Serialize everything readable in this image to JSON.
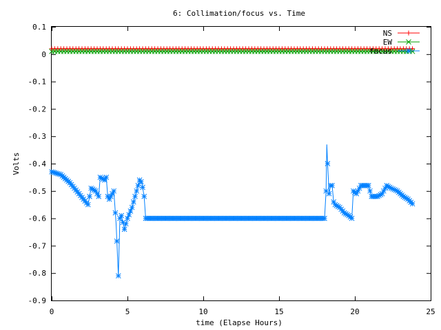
{
  "chart_data": {
    "type": "line",
    "title": "6: Collimation/focus vs. Time",
    "xlabel": "time (Elapse Hours)",
    "ylabel": "Volts",
    "xlim": [
      0,
      25
    ],
    "ylim": [
      -0.9,
      0.1
    ],
    "x_ticks": [
      0,
      5,
      10,
      15,
      20,
      25
    ],
    "x_tick_labels": [
      "0",
      "5",
      "10",
      "15",
      "20",
      "25"
    ],
    "y_ticks": [
      0.1,
      0,
      -0.1,
      -0.2,
      -0.3,
      -0.4,
      -0.5,
      -0.6,
      -0.7,
      -0.8,
      -0.9
    ],
    "y_tick_labels": [
      "0.1",
      "0",
      "-0.1",
      "-0.2",
      "-0.3",
      "-0.4",
      "-0.5",
      "-0.6",
      "-0.7",
      "-0.8",
      "-0.9"
    ],
    "grid": false,
    "legend_position": "top-right",
    "series": [
      {
        "name": "NS",
        "color": "#ff0000",
        "marker": "plus",
        "x": [
          0,
          23.9
        ],
        "y": [
          0.02,
          0.02
        ],
        "marker_step": 0.2
      },
      {
        "name": "EW",
        "color": "#00a000",
        "marker": "cross",
        "x": [
          0,
          23.9
        ],
        "y": [
          0.01,
          0.01
        ],
        "marker_step": 0.2
      },
      {
        "name": "focus",
        "color": "#0080ff",
        "marker": "star",
        "x": [
          0,
          0.3,
          0.6,
          0.9,
          1.2,
          1.5,
          1.8,
          2.1,
          2.4,
          2.6,
          2.9,
          3.1,
          3.2,
          3.5,
          3.6,
          3.7,
          3.8,
          4.1,
          4.25,
          4.4,
          4.5,
          4.6,
          4.8,
          5.0,
          5.3,
          5.6,
          5.8,
          5.95,
          6.1,
          6.2,
          8,
          10,
          12,
          14,
          16,
          18.0,
          18.1,
          18.15,
          18.2,
          18.3,
          18.4,
          18.5,
          18.6,
          18.7,
          19.0,
          19.3,
          19.6,
          19.8,
          19.9,
          20.1,
          20.4,
          20.7,
          20.9,
          21.1,
          21.5,
          21.8,
          22.1,
          22.4,
          22.8,
          23.2,
          23.5,
          23.85
        ],
        "y": [
          -0.43,
          -0.435,
          -0.44,
          -0.455,
          -0.47,
          -0.49,
          -0.51,
          -0.53,
          -0.55,
          -0.49,
          -0.5,
          -0.52,
          -0.45,
          -0.46,
          -0.45,
          -0.52,
          -0.53,
          -0.5,
          -0.62,
          -0.81,
          -0.6,
          -0.59,
          -0.64,
          -0.6,
          -0.56,
          -0.5,
          -0.46,
          -0.47,
          -0.52,
          -0.6,
          -0.6,
          -0.6,
          -0.6,
          -0.6,
          -0.6,
          -0.6,
          -0.5,
          -0.33,
          -0.4,
          -0.51,
          -0.48,
          -0.48,
          -0.54,
          -0.55,
          -0.56,
          -0.58,
          -0.59,
          -0.6,
          -0.5,
          -0.51,
          -0.48,
          -0.48,
          -0.48,
          -0.52,
          -0.52,
          -0.51,
          -0.48,
          -0.49,
          -0.5,
          -0.52,
          -0.53,
          -0.55
        ],
        "marker_step": 0.1
      }
    ]
  }
}
